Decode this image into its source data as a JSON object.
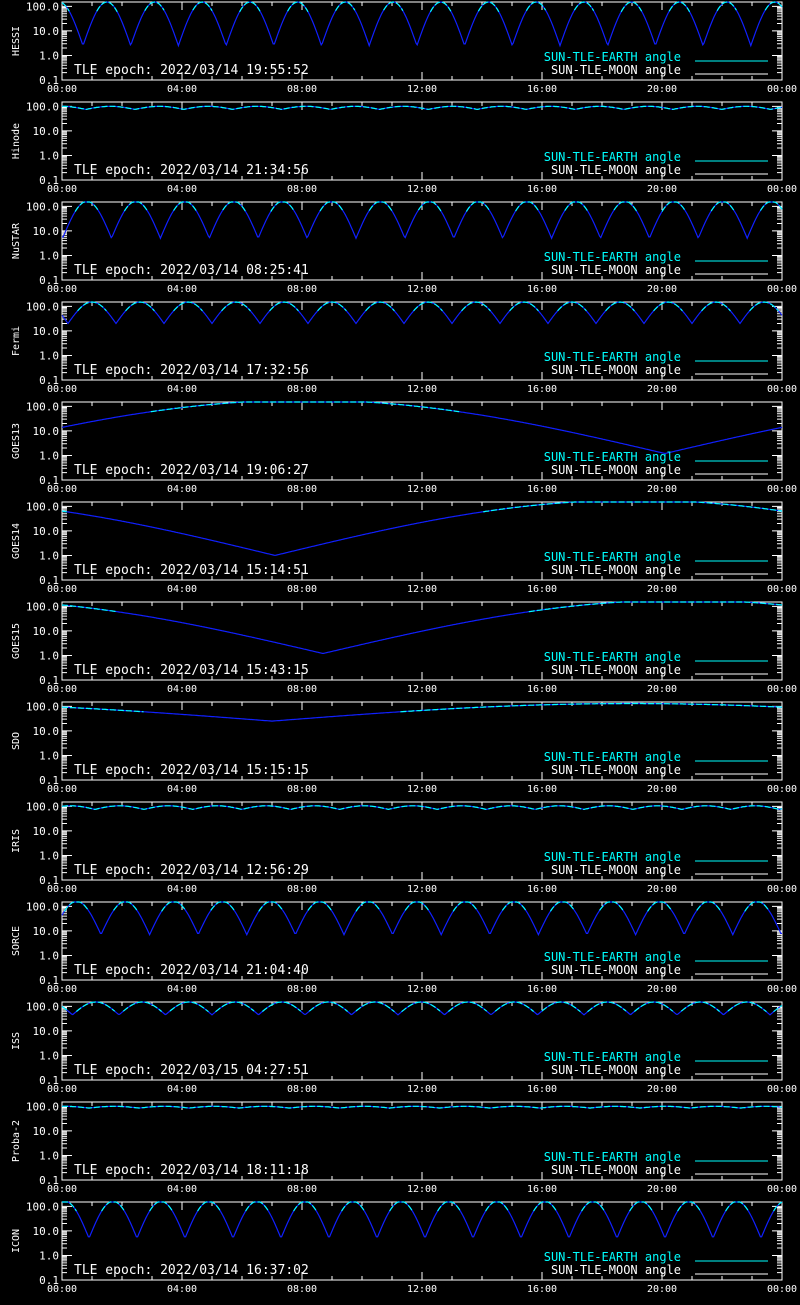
{
  "chart_data": [
    {
      "type": "line",
      "ylabel": "HESSI",
      "epoch": "TLE epoch: 2022/03/14 19:55:52",
      "legend": [
        "SUN-TLE-EARTH angle",
        "SUN-TLE-MOON angle"
      ],
      "yticks": [
        "100.0",
        "10.0",
        "1.0",
        "0.1"
      ],
      "xticks": [
        "00:00",
        "04:00",
        "08:00",
        "12:00",
        "16:00",
        "20:00",
        "00:00"
      ],
      "xlim_hours": [
        0,
        24
      ],
      "ylim": [
        0.1,
        150
      ],
      "yscale": "log",
      "model": {
        "kind": "orbit",
        "period_h": 1.59,
        "phase_h": 0.7,
        "min": 2.5,
        "max": 150
      }
    },
    {
      "type": "line",
      "ylabel": "Hinode",
      "epoch": "TLE epoch: 2022/03/14 21:34:56",
      "legend": [
        "SUN-TLE-EARTH angle",
        "SUN-TLE-MOON angle"
      ],
      "yticks": [
        "100.0",
        "10.0",
        "1.0",
        "0.1"
      ],
      "xticks": [
        "00:00",
        "04:00",
        "08:00",
        "12:00",
        "16:00",
        "20:00",
        "00:00"
      ],
      "xlim_hours": [
        0,
        24
      ],
      "ylim": [
        0.1,
        150
      ],
      "yscale": "log",
      "model": {
        "kind": "orbit",
        "period_h": 1.63,
        "phase_h": 0.8,
        "min": 75,
        "max": 100
      }
    },
    {
      "type": "line",
      "ylabel": "NuSTAR",
      "epoch": "TLE epoch: 2022/03/14 08:25:41",
      "legend": [
        "SUN-TLE-EARTH angle",
        "SUN-TLE-MOON angle"
      ],
      "yticks": [
        "100.0",
        "10.0",
        "1.0",
        "0.1"
      ],
      "xticks": [
        "00:00",
        "04:00",
        "08:00",
        "12:00",
        "16:00",
        "20:00",
        "00:00"
      ],
      "xlim_hours": [
        0,
        24
      ],
      "ylim": [
        0.1,
        150
      ],
      "yscale": "log",
      "model": {
        "kind": "orbit",
        "period_h": 1.63,
        "phase_h": 1.65,
        "min": 5,
        "max": 160
      }
    },
    {
      "type": "line",
      "ylabel": "Fermi",
      "epoch": "TLE epoch: 2022/03/14 17:32:56",
      "legend": [
        "SUN-TLE-EARTH angle",
        "SUN-TLE-MOON angle"
      ],
      "yticks": [
        "100.0",
        "10.0",
        "1.0",
        "0.1"
      ],
      "xticks": [
        "00:00",
        "04:00",
        "08:00",
        "12:00",
        "16:00",
        "20:00",
        "00:00"
      ],
      "xlim_hours": [
        0,
        24
      ],
      "ylim": [
        0.1,
        150
      ],
      "yscale": "log",
      "model": {
        "kind": "orbit",
        "period_h": 1.6,
        "phase_h": 0.2,
        "min": 20,
        "max": 150
      }
    },
    {
      "type": "line",
      "ylabel": "GOES13",
      "epoch": "TLE epoch: 2022/03/14 19:06:27",
      "legend": [
        "SUN-TLE-EARTH angle",
        "SUN-TLE-MOON angle"
      ],
      "yticks": [
        "100.0",
        "10.0",
        "1.0",
        "0.1"
      ],
      "xticks": [
        "00:00",
        "04:00",
        "08:00",
        "12:00",
        "16:00",
        "20:00",
        "00:00"
      ],
      "xlim_hours": [
        0,
        24
      ],
      "ylim": [
        0.1,
        150
      ],
      "yscale": "log",
      "model": {
        "kind": "geo",
        "dip_h": 20.1,
        "min": 1.2,
        "max": 180
      }
    },
    {
      "type": "line",
      "ylabel": "GOES14",
      "epoch": "TLE epoch: 2022/03/14 15:14:51",
      "legend": [
        "SUN-TLE-EARTH angle",
        "SUN-TLE-MOON angle"
      ],
      "yticks": [
        "100.0",
        "10.0",
        "1.0",
        "0.1"
      ],
      "xticks": [
        "00:00",
        "04:00",
        "08:00",
        "12:00",
        "16:00",
        "20:00",
        "00:00"
      ],
      "xlim_hours": [
        0,
        24
      ],
      "ylim": [
        0.1,
        150
      ],
      "yscale": "log",
      "model": {
        "kind": "geo",
        "dip_h": 7.1,
        "min": 1.0,
        "max": 180
      }
    },
    {
      "type": "line",
      "ylabel": "GOES15",
      "epoch": "TLE epoch: 2022/03/14 15:43:15",
      "legend": [
        "SUN-TLE-EARTH angle",
        "SUN-TLE-MOON angle"
      ],
      "yticks": [
        "100.0",
        "10.0",
        "1.0",
        "0.1"
      ],
      "xticks": [
        "00:00",
        "04:00",
        "08:00",
        "12:00",
        "16:00",
        "20:00",
        "00:00"
      ],
      "xlim_hours": [
        0,
        24
      ],
      "ylim": [
        0.1,
        150
      ],
      "yscale": "log",
      "model": {
        "kind": "geo",
        "dip_h": 8.7,
        "min": 1.2,
        "max": 180
      }
    },
    {
      "type": "line",
      "ylabel": "SDO",
      "epoch": "TLE epoch: 2022/03/14 15:15:15",
      "legend": [
        "SUN-TLE-EARTH angle",
        "SUN-TLE-MOON angle"
      ],
      "yticks": [
        "100.0",
        "10.0",
        "1.0",
        "0.1"
      ],
      "xticks": [
        "00:00",
        "04:00",
        "08:00",
        "12:00",
        "16:00",
        "20:00",
        "00:00"
      ],
      "xlim_hours": [
        0,
        24
      ],
      "ylim": [
        0.1,
        150
      ],
      "yscale": "log",
      "model": {
        "kind": "geo",
        "dip_h": 7.0,
        "min": 25,
        "max": 130
      }
    },
    {
      "type": "line",
      "ylabel": "IRIS",
      "epoch": "TLE epoch: 2022/03/14 12:56:29",
      "legend": [
        "SUN-TLE-EARTH angle",
        "SUN-TLE-MOON angle"
      ],
      "yticks": [
        "100.0",
        "10.0",
        "1.0",
        "0.1"
      ],
      "xticks": [
        "00:00",
        "04:00",
        "08:00",
        "12:00",
        "16:00",
        "20:00",
        "00:00"
      ],
      "xlim_hours": [
        0,
        24
      ],
      "ylim": [
        0.1,
        150
      ],
      "yscale": "log",
      "model": {
        "kind": "orbit",
        "period_h": 1.63,
        "phase_h": 1.1,
        "min": 75,
        "max": 105
      }
    },
    {
      "type": "line",
      "ylabel": "SORCE",
      "epoch": "TLE epoch: 2022/03/14 21:04:40",
      "legend": [
        "SUN-TLE-EARTH angle",
        "SUN-TLE-MOON angle"
      ],
      "yticks": [
        "100.0",
        "10.0",
        "1.0",
        "0.1"
      ],
      "xticks": [
        "00:00",
        "04:00",
        "08:00",
        "12:00",
        "16:00",
        "20:00",
        "00:00"
      ],
      "xlim_hours": [
        0,
        24
      ],
      "ylim": [
        0.1,
        150
      ],
      "yscale": "log",
      "model": {
        "kind": "orbit",
        "period_h": 1.62,
        "phase_h": 1.3,
        "min": 7,
        "max": 160
      }
    },
    {
      "type": "line",
      "ylabel": "ISS",
      "epoch": "TLE epoch: 2022/03/15 04:27:51",
      "legend": [
        "SUN-TLE-EARTH angle",
        "SUN-TLE-MOON angle"
      ],
      "yticks": [
        "100.0",
        "10.0",
        "1.0",
        "0.1"
      ],
      "xticks": [
        "00:00",
        "04:00",
        "08:00",
        "12:00",
        "16:00",
        "20:00",
        "00:00"
      ],
      "xlim_hours": [
        0,
        24
      ],
      "ylim": [
        0.1,
        150
      ],
      "yscale": "log",
      "model": {
        "kind": "orbit",
        "period_h": 1.55,
        "phase_h": 0.35,
        "min": 45,
        "max": 150
      }
    },
    {
      "type": "line",
      "ylabel": "Proba-2",
      "epoch": "TLE epoch: 2022/03/14 18:11:18",
      "legend": [
        "SUN-TLE-EARTH angle",
        "SUN-TLE-MOON angle"
      ],
      "yticks": [
        "100.0",
        "10.0",
        "1.0",
        "0.1"
      ],
      "xticks": [
        "00:00",
        "04:00",
        "08:00",
        "12:00",
        "16:00",
        "20:00",
        "00:00"
      ],
      "xlim_hours": [
        0,
        24
      ],
      "ylim": [
        0.1,
        150
      ],
      "yscale": "log",
      "model": {
        "kind": "orbit",
        "period_h": 1.67,
        "phase_h": 0.9,
        "min": 85,
        "max": 100
      }
    },
    {
      "type": "line",
      "ylabel": "ICON",
      "epoch": "TLE epoch: 2022/03/14 16:37:02",
      "legend": [
        "SUN-TLE-EARTH angle",
        "SUN-TLE-MOON angle"
      ],
      "yticks": [
        "100.0",
        "10.0",
        "1.0",
        "0.1"
      ],
      "xticks": [
        "00:00",
        "04:00",
        "08:00",
        "12:00",
        "16:00",
        "20:00",
        "00:00"
      ],
      "xlim_hours": [
        0,
        24
      ],
      "ylim": [
        0.1,
        150
      ],
      "yscale": "log",
      "model": {
        "kind": "orbit",
        "period_h": 1.6,
        "phase_h": 0.9,
        "min": 5,
        "max": 160
      }
    }
  ],
  "colors": {
    "earth": "#00ffff",
    "dark": "#1020ff",
    "moon": "#ffffff",
    "axes": "#ffffff",
    "background": "#000000"
  }
}
